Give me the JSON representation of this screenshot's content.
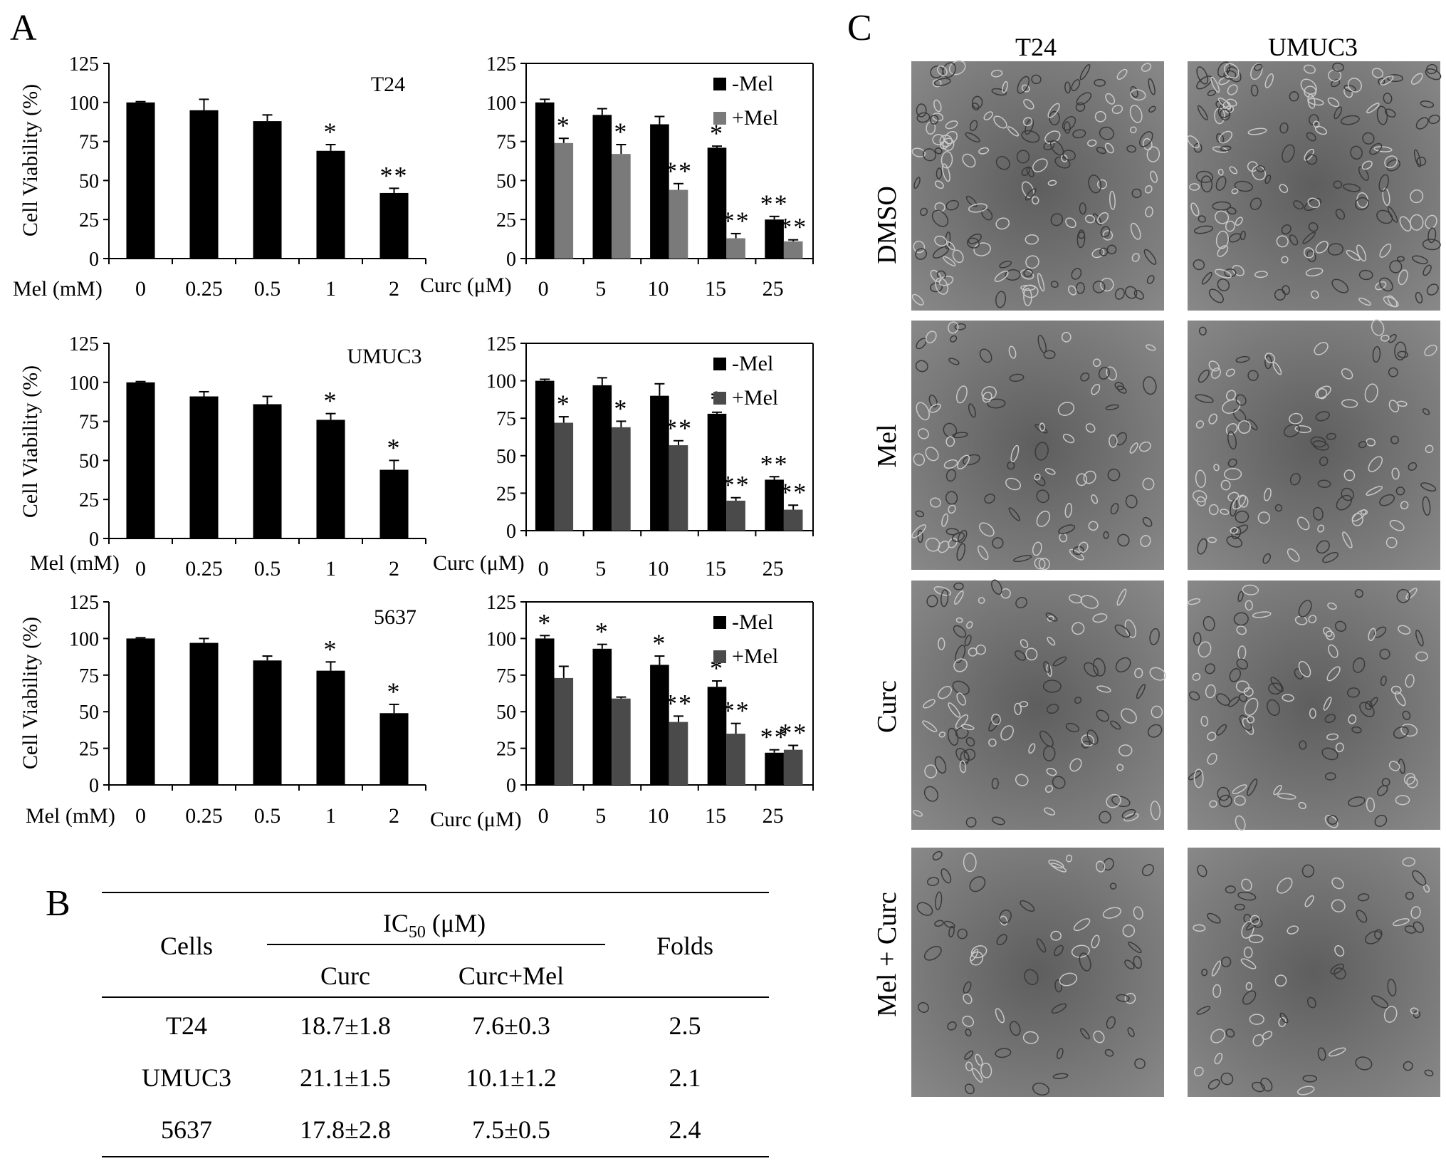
{
  "panel_labels": {
    "a": "A",
    "b": "B",
    "c": "C"
  },
  "colors": {
    "minus_mel": "#000000",
    "plus_mel_t24": "#7a7a7a",
    "plus_mel": "#4a4a4a"
  },
  "chart_data": [
    {
      "id": "a1",
      "type": "bar",
      "cell_line": "T24",
      "title": "",
      "xlabel": "Mel (mM)",
      "ylabel": "Cell Viability (%)",
      "ylim": [
        0,
        125
      ],
      "yticks": [
        0,
        25,
        50,
        75,
        100,
        125
      ],
      "categories": [
        "0",
        "0.25",
        "0.5",
        "1",
        "2"
      ],
      "series": [
        {
          "values": [
            100,
            95,
            88,
            69,
            42
          ],
          "errors": [
            0.5,
            7,
            4,
            4,
            3
          ]
        }
      ],
      "marks": [
        "",
        "",
        "",
        "*",
        "**"
      ]
    },
    {
      "id": "a2",
      "type": "bar",
      "title": "",
      "xlabel": "Curc (μM)",
      "ylabel": "",
      "ylim": [
        0,
        125
      ],
      "yticks": [
        0,
        25,
        50,
        75,
        100,
        125
      ],
      "legend": "top-right",
      "categories": [
        "0",
        "5",
        "10",
        "15",
        "25"
      ],
      "series": [
        {
          "name": "-Mel",
          "values": [
            100,
            92,
            86,
            71,
            25
          ],
          "errors": [
            2,
            4,
            5,
            1,
            2
          ]
        },
        {
          "name": "+Mel",
          "values": [
            74,
            67,
            44,
            13,
            11
          ],
          "errors": [
            3,
            6,
            4,
            3,
            1
          ]
        }
      ],
      "marks": [
        [
          "",
          "",
          "",
          "*",
          "**"
        ],
        [
          "*",
          "*",
          "**",
          "**",
          "**"
        ]
      ]
    },
    {
      "id": "a3",
      "type": "bar",
      "cell_line": "UMUC3",
      "title": "",
      "xlabel": "Mel (mM)",
      "ylabel": "Cell Viability (%)",
      "ylim": [
        0,
        125
      ],
      "yticks": [
        0,
        25,
        50,
        75,
        100,
        125
      ],
      "categories": [
        "0",
        "0.25",
        "0.5",
        "1",
        "2"
      ],
      "series": [
        {
          "values": [
            100,
            91,
            86,
            76,
            44
          ],
          "errors": [
            0.5,
            3,
            5,
            4,
            6
          ]
        }
      ],
      "marks": [
        "",
        "",
        "",
        "*",
        "*"
      ]
    },
    {
      "id": "a4",
      "type": "bar",
      "title": "",
      "xlabel": "Curc (μM)",
      "ylabel": "",
      "ylim": [
        0,
        125
      ],
      "yticks": [
        0,
        25,
        50,
        75,
        100,
        125
      ],
      "legend": "top-right",
      "categories": [
        "0",
        "5",
        "10",
        "15",
        "25"
      ],
      "series": [
        {
          "name": "-Mel",
          "values": [
            100,
            97,
            90,
            78,
            34
          ],
          "errors": [
            1,
            5,
            8,
            1,
            2
          ]
        },
        {
          "name": "+Mel",
          "values": [
            72,
            69,
            57,
            20,
            14
          ],
          "errors": [
            4,
            4,
            3,
            2,
            3
          ]
        }
      ],
      "marks": [
        [
          "",
          "",
          "",
          "*",
          "**"
        ],
        [
          "*",
          "*",
          "**",
          "**",
          "**"
        ]
      ]
    },
    {
      "id": "a5",
      "type": "bar",
      "cell_line": "5637",
      "title": "",
      "xlabel": "Mel (mM)",
      "ylabel": "Cell Viability (%)",
      "ylim": [
        0,
        125
      ],
      "yticks": [
        0,
        25,
        50,
        75,
        100,
        125
      ],
      "categories": [
        "0",
        "0.25",
        "0.5",
        "1",
        "2"
      ],
      "series": [
        {
          "values": [
            100,
            97,
            85,
            78,
            49
          ],
          "errors": [
            0.5,
            3,
            3,
            6,
            6
          ]
        }
      ],
      "marks": [
        "",
        "",
        "",
        "*",
        "*"
      ]
    },
    {
      "id": "a6",
      "type": "bar",
      "title": "",
      "xlabel": "Curc (μM)",
      "ylabel": "",
      "ylim": [
        0,
        125
      ],
      "yticks": [
        0,
        25,
        50,
        75,
        100,
        125
      ],
      "legend": "top-right",
      "categories": [
        "0",
        "5",
        "10",
        "15",
        "25"
      ],
      "series": [
        {
          "name": "-Mel",
          "values": [
            100,
            93,
            82,
            67,
            22
          ],
          "errors": [
            2,
            3,
            6,
            4,
            2
          ]
        },
        {
          "name": "+Mel",
          "values": [
            73,
            59,
            43,
            35,
            24
          ],
          "errors": [
            8,
            1,
            4,
            7,
            3
          ]
        }
      ],
      "marks": [
        [
          "*",
          "*",
          "*",
          "*",
          "**"
        ],
        [
          "",
          "",
          "**",
          "**",
          "**"
        ]
      ]
    },
    {
      "id": "b",
      "type": "table",
      "header": {
        "cells": "Cells",
        "ic50": "IC",
        "ic50_sub": "50",
        "ic50_unit": " (μM)",
        "curc": "Curc",
        "curc_mel": "Curc+Mel",
        "folds": "Folds"
      },
      "rows": [
        {
          "cell": "T24",
          "curc": "18.7±1.8",
          "curc_mel": "7.6±0.3",
          "folds": "2.5"
        },
        {
          "cell": "UMUC3",
          "curc": "21.1±1.5",
          "curc_mel": "10.1±1.2",
          "folds": "2.1"
        },
        {
          "cell": "5637",
          "curc": "17.8±2.8",
          "curc_mel": "7.5±0.5",
          "folds": "2.4"
        }
      ]
    }
  ],
  "micrographs": {
    "columns": [
      "T24",
      "UMUC3"
    ],
    "rows": [
      "DMSO",
      "Mel",
      "Curc",
      "Mel + Curc"
    ]
  }
}
